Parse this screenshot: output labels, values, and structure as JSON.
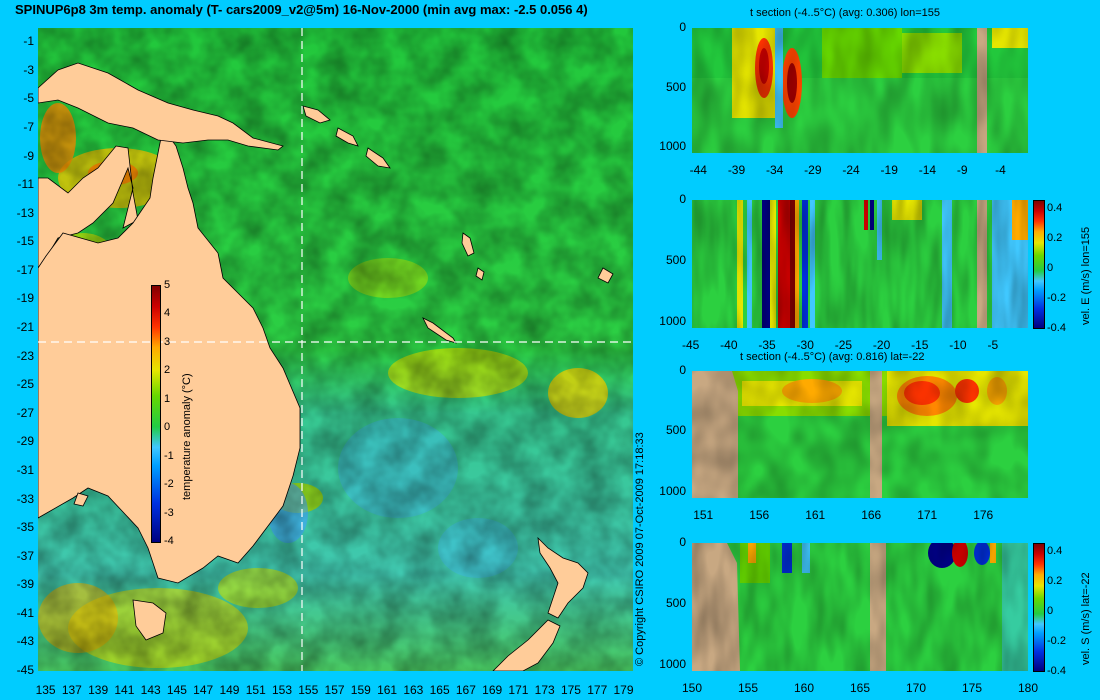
{
  "page": {
    "title": "SPINUP6p8 3m temp. anomaly (T- cars2009_v2@5m) 16-Nov-2000 (min avg max: -2.5 0.056 4)",
    "copyright": "© Copyright CSIRO 2009   07-Oct-2009 17:18:33"
  },
  "colors": {
    "background": "#00ccff",
    "land": "#ffcc99",
    "section_land": "#c8a882",
    "colormap": [
      "#000080",
      "#0030e0",
      "#00a0ff",
      "#40c8ff",
      "#22cc44",
      "#66d800",
      "#e6e600",
      "#ffaa00",
      "#ff3300",
      "#cc0000",
      "#800000"
    ]
  },
  "chart_data": [
    {
      "type": "heatmap",
      "id": "map",
      "title": "SPINUP6p8 3m temp. anomaly (T- cars2009_v2@5m) 16-Nov-2000 (min avg max: -2.5 0.056 4)",
      "xticks": [
        "135",
        "137",
        "139",
        "141",
        "143",
        "145",
        "147",
        "149",
        "151",
        "153",
        "155",
        "157",
        "159",
        "161",
        "163",
        "165",
        "167",
        "169",
        "171",
        "173",
        "175",
        "177",
        "179"
      ],
      "yticks": [
        "-1",
        "-3",
        "-5",
        "-7",
        "-9",
        "-11",
        "-13",
        "-15",
        "-17",
        "-19",
        "-21",
        "-23",
        "-25",
        "-27",
        "-29",
        "-31",
        "-33",
        "-35",
        "-37",
        "-39",
        "-41",
        "-43",
        "-45"
      ],
      "xlim": [
        134.5,
        179.8
      ],
      "ylim": [
        -45,
        0
      ],
      "section_lon": 155,
      "section_lat": -22,
      "colorbar": {
        "label": "temperature anomaly (°C)",
        "ticks": [
          "5",
          "4",
          "3",
          "2",
          "1",
          "0",
          "-1",
          "-2",
          "-3",
          "-4"
        ],
        "range": [
          -4,
          5
        ]
      }
    },
    {
      "type": "heatmap",
      "id": "t-section-lon",
      "title": "t section (-4..5°C) (avg: 0.306) lon=155",
      "xticks": [
        "-44",
        "-39",
        "-34",
        "-29",
        "-24",
        "-19",
        "-14",
        "-9",
        "-4"
      ],
      "yticks": [
        "0",
        "500",
        "1000"
      ],
      "xlim": [
        -45,
        -1
      ],
      "ylim": [
        1050,
        0
      ]
    },
    {
      "type": "heatmap",
      "id": "vel-e-section",
      "title": "",
      "xticks": [
        "-45",
        "-40",
        "-35",
        "-30",
        "-25",
        "-20",
        "-15",
        "-10",
        "-5"
      ],
      "yticks": [
        "0",
        "500",
        "1000"
      ],
      "xlim": [
        -45,
        -1
      ],
      "ylim": [
        1050,
        0
      ],
      "colorbar": {
        "label": "vel. E (m/s) lon=155",
        "ticks": [
          "0.4",
          "0.2",
          "0",
          "-0.2",
          "-0.4"
        ],
        "range": [
          -0.4,
          0.45
        ]
      }
    },
    {
      "type": "heatmap",
      "id": "t-section-lat",
      "title": "t section (-4..5°C) (avg: 0.816) lat=-22",
      "xticks": [
        "151",
        "156",
        "161",
        "166",
        "171",
        "176"
      ],
      "yticks": [
        "0",
        "500",
        "1000"
      ],
      "xlim": [
        150,
        180
      ],
      "ylim": [
        1050,
        0
      ]
    },
    {
      "type": "heatmap",
      "id": "vel-s-section",
      "title": "",
      "xticks": [
        "150",
        "155",
        "160",
        "165",
        "170",
        "175",
        "180"
      ],
      "yticks": [
        "0",
        "500",
        "1000"
      ],
      "xlim": [
        150,
        180
      ],
      "ylim": [
        1050,
        0
      ],
      "colorbar": {
        "label": "vel. S (m/s) lat=-22",
        "ticks": [
          "0.4",
          "0.2",
          "0",
          "-0.2",
          "-0.4"
        ],
        "range": [
          -0.4,
          0.45
        ]
      }
    }
  ]
}
